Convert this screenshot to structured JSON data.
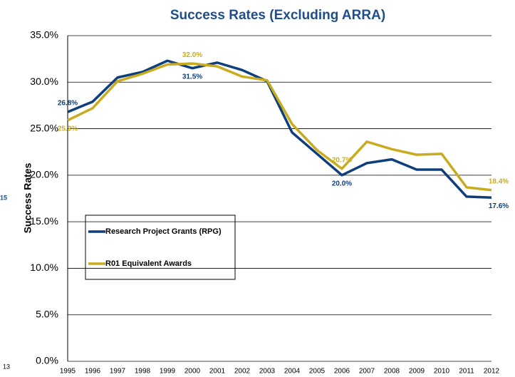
{
  "chart_data": {
    "type": "line",
    "title": "Success Rates (Excluding ARRA)",
    "y_label": "Success Rates",
    "annotations": [
      "15",
      "13"
    ],
    "categories": [
      "1995",
      "1996",
      "1997",
      "1998",
      "1999",
      "2000",
      "2001",
      "2002",
      "2003",
      "2004",
      "2005",
      "2006",
      "2007",
      "2008",
      "2009",
      "2010",
      "2011",
      "2012"
    ],
    "series": [
      {
        "name": "Research Project Grants (RPG)",
        "color": "#0e3f7c",
        "values": [
          26.8,
          27.9,
          30.5,
          31.1,
          32.3,
          31.5,
          32.1,
          31.3,
          30.1,
          24.6,
          22.3,
          20.0,
          21.3,
          21.7,
          20.6,
          20.6,
          17.7,
          17.6
        ],
        "value_labels": [
          "26.8%",
          null,
          null,
          null,
          null,
          "31.5%",
          null,
          null,
          null,
          null,
          null,
          "20.0%",
          null,
          null,
          null,
          null,
          null,
          "17.6%"
        ]
      },
      {
        "name": "R01 Equivalent Awards",
        "color": "#c9ab1f",
        "values": [
          25.9,
          27.2,
          30.1,
          30.9,
          31.9,
          32.0,
          31.7,
          30.6,
          30.2,
          25.5,
          22.7,
          20.7,
          23.6,
          22.8,
          22.2,
          22.3,
          18.7,
          18.4
        ],
        "value_labels": [
          "25.9%",
          null,
          null,
          null,
          null,
          "32.0%",
          null,
          null,
          null,
          null,
          null,
          "20.7%",
          null,
          null,
          null,
          null,
          null,
          "18.4%"
        ]
      }
    ],
    "ylim": [
      0,
      35
    ],
    "yticks": [
      {
        "value": 0,
        "label": "0.0%"
      },
      {
        "value": 5,
        "label": "5.0%"
      },
      {
        "value": 10,
        "label": "10.0%"
      },
      {
        "value": 15,
        "label": "15.0%"
      },
      {
        "value": 20,
        "label": "20.0%"
      },
      {
        "value": 25,
        "label": "25.0%"
      },
      {
        "value": 30,
        "label": "30.0%"
      },
      {
        "value": 35,
        "label": "35.0%"
      }
    ],
    "grid": true
  }
}
